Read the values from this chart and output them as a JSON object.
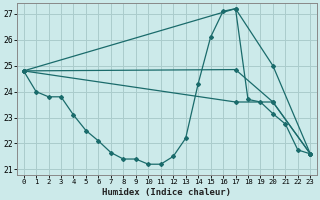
{
  "title": "",
  "xlabel": "Humidex (Indice chaleur)",
  "ylabel": "",
  "xlim": [
    -0.5,
    23.5
  ],
  "ylim": [
    20.8,
    27.4
  ],
  "yticks": [
    21,
    22,
    23,
    24,
    25,
    26,
    27
  ],
  "xticks": [
    0,
    1,
    2,
    3,
    4,
    5,
    6,
    7,
    8,
    9,
    10,
    11,
    12,
    13,
    14,
    15,
    16,
    17,
    18,
    19,
    20,
    21,
    22,
    23
  ],
  "bg_color": "#cceaea",
  "grid_color": "#aacccc",
  "line_color": "#1a6b6b",
  "curve": {
    "x": [
      0,
      1,
      2,
      3,
      4,
      5,
      6,
      7,
      8,
      9,
      10,
      11,
      12,
      13,
      14,
      15,
      16,
      17,
      18,
      19,
      20,
      21,
      22,
      23
    ],
    "y": [
      24.8,
      24.0,
      23.8,
      23.8,
      23.1,
      22.5,
      22.1,
      21.65,
      21.4,
      21.4,
      21.2,
      21.2,
      21.5,
      22.2,
      24.3,
      26.1,
      27.1,
      27.2,
      23.7,
      23.6,
      23.15,
      22.75,
      21.75,
      21.6
    ]
  },
  "line_top": {
    "x": [
      0,
      17,
      20,
      23
    ],
    "y": [
      24.8,
      27.2,
      25.0,
      21.6
    ]
  },
  "line_mid": {
    "x": [
      0,
      17,
      20,
      23
    ],
    "y": [
      24.8,
      24.85,
      23.6,
      21.6
    ]
  },
  "line_bot": {
    "x": [
      0,
      17,
      20,
      23
    ],
    "y": [
      24.8,
      23.6,
      23.6,
      21.6
    ]
  }
}
